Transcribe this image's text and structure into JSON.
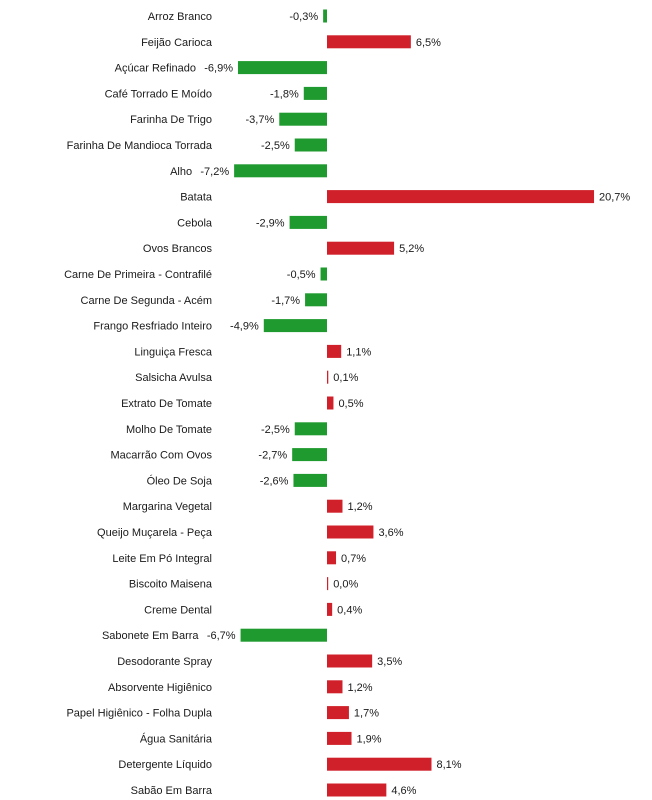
{
  "chart_data": {
    "type": "bar",
    "orientation": "horizontal",
    "categories": [
      "Arroz Branco",
      "Feijão Carioca",
      "Açúcar Refinado",
      "Café Torrado E Moído",
      "Farinha De Trigo",
      "Farinha De Mandioca Torrada",
      "Alho",
      "Batata",
      "Cebola",
      "Ovos Brancos",
      "Carne De Primeira - Contrafilé",
      "Carne De Segunda - Acém",
      "Frango Resfriado Inteiro",
      "Linguiça Fresca",
      "Salsicha Avulsa",
      "Extrato De Tomate",
      "Molho De Tomate",
      "Macarrão Com Ovos",
      "Óleo De Soja",
      "Margarina Vegetal",
      "Queijo Muçarela - Peça",
      "Leite Em Pó Integral",
      "Biscoito Maisena",
      "Creme Dental",
      "Sabonete Em Barra",
      "Desodorante Spray",
      "Absorvente Higiênico",
      "Papel Higiênico - Folha Dupla",
      "Água Sanitária",
      "Detergente Líquido",
      "Sabão Em Barra"
    ],
    "values": [
      -0.3,
      6.5,
      -6.9,
      -1.8,
      -3.7,
      -2.5,
      -7.2,
      20.7,
      -2.9,
      5.2,
      -0.5,
      -1.7,
      -4.9,
      1.1,
      0.1,
      0.5,
      -2.5,
      -2.7,
      -2.6,
      1.2,
      3.6,
      0.7,
      0.0,
      0.4,
      -6.7,
      3.5,
      1.2,
      1.7,
      1.9,
      8.1,
      4.6
    ],
    "value_labels": [
      "-0,3%",
      "6,5%",
      "-6,9%",
      "-1,8%",
      "-3,7%",
      "-2,5%",
      "-7,2%",
      "20,7%",
      "-2,9%",
      "5,2%",
      "-0,5%",
      "-1,7%",
      "-4,9%",
      "1,1%",
      "0,1%",
      "0,5%",
      "-2,5%",
      "-2,7%",
      "-2,6%",
      "1,2%",
      "3,6%",
      "0,7%",
      "0,0%",
      "0,4%",
      "-6,7%",
      "3,5%",
      "1,2%",
      "1,7%",
      "1,9%",
      "8,1%",
      "4,6%"
    ],
    "unit": "%",
    "colors": {
      "positive": "#d0202a",
      "negative": "#1f9a2e"
    },
    "title": "",
    "xlabel": "",
    "ylabel": "",
    "grid": false,
    "legend": "none"
  }
}
